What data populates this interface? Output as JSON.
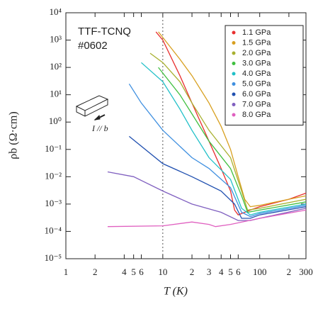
{
  "chart_data": {
    "type": "line",
    "x_label": "T (K)",
    "y_label": "ρb (Ω·cm)",
    "annotations": [
      "TTF-TCNQ",
      "#0602",
      "I // b"
    ],
    "log_x": true,
    "log_y": true,
    "legend": "upper right",
    "reference_x": 10,
    "xlim": [
      1,
      300
    ],
    "ylim": [
      1e-05,
      10000
    ],
    "xticks": [
      1,
      {
        "value": 2,
        "label": "2"
      },
      {
        "value": 4,
        "label": "4"
      },
      {
        "value": 5,
        "label": "5"
      },
      {
        "value": 6,
        "label": "6"
      },
      10,
      {
        "value": 20,
        "label": "2"
      },
      {
        "value": 30,
        "label": "3"
      },
      {
        "value": 40,
        "label": "4"
      },
      {
        "value": 50,
        "label": "5"
      },
      {
        "value": 60,
        "label": "6"
      },
      100,
      {
        "value": 200,
        "label": "2"
      },
      300
    ],
    "yticks": [
      {
        "value": 1e-05,
        "label": "10⁻⁵"
      },
      {
        "value": 0.0001,
        "label": "10⁻⁴"
      },
      {
        "value": 0.001,
        "label": "10⁻³"
      },
      {
        "value": 0.01,
        "label": "10⁻²"
      },
      {
        "value": 0.1,
        "label": "10⁻¹"
      },
      {
        "value": 1,
        "label": "10⁰"
      },
      {
        "value": 10,
        "label": "10¹"
      },
      {
        "value": 100,
        "label": "10²"
      },
      {
        "value": 1000,
        "label": "10³"
      },
      {
        "value": 10000,
        "label": "10⁴"
      }
    ],
    "series": [
      {
        "name": "1.1 GPa",
        "color": "#e83030",
        "x": [
          8.5,
          10,
          15,
          20,
          30,
          40,
          50,
          55,
          60,
          80,
          100,
          200,
          300
        ],
        "values": [
          2000,
          1000,
          50,
          5,
          0.2,
          0.02,
          0.003,
          0.0006,
          0.0004,
          0.0006,
          0.0008,
          0.0015,
          0.0025
        ]
      },
      {
        "name": "1.5 GPa",
        "color": "#d8a020",
        "x": [
          9,
          15,
          20,
          30,
          40,
          50,
          60,
          70,
          80,
          100,
          200,
          300
        ],
        "values": [
          2000,
          200,
          50,
          5,
          0.7,
          0.1,
          0.01,
          0.0015,
          0.0008,
          0.0009,
          0.0015,
          0.002
        ]
      },
      {
        "name": "2.0 GPa",
        "color": "#a8b030",
        "x": [
          7.4,
          10,
          15,
          20,
          30,
          50,
          65,
          75,
          100,
          300
        ],
        "values": [
          330,
          150,
          30,
          5,
          0.5,
          0.05,
          0.003,
          0.0006,
          0.0007,
          0.0015
        ]
      },
      {
        "name": "3.0 GPa",
        "color": "#40c040",
        "x": [
          9,
          15,
          20,
          30,
          50,
          65,
          75,
          100,
          300
        ],
        "values": [
          100,
          10,
          2,
          0.2,
          0.02,
          0.002,
          0.0005,
          0.0006,
          0.0012
        ]
      },
      {
        "name": "4.0 GPa",
        "color": "#20c0c8",
        "x": [
          6,
          10,
          15,
          20,
          30,
          50,
          65,
          80,
          100,
          300
        ],
        "values": [
          150,
          30,
          3,
          0.5,
          0.05,
          0.008,
          0.0007,
          0.0004,
          0.0005,
          0.001
        ]
      },
      {
        "name": "5.0 GPa",
        "color": "#4090e0",
        "x": [
          4.5,
          6,
          10,
          20,
          30,
          50,
          65,
          80,
          100,
          300
        ],
        "values": [
          25,
          5,
          0.5,
          0.05,
          0.02,
          0.004,
          0.0005,
          0.00035,
          0.00045,
          0.0009
        ]
      },
      {
        "name": "6.0 GPa",
        "color": "#2050b0",
        "x": [
          4.5,
          10,
          20,
          40,
          55,
          65,
          80,
          100,
          300
        ],
        "values": [
          0.3,
          0.03,
          0.01,
          0.003,
          0.001,
          0.0003,
          0.0003,
          0.0004,
          0.0008
        ]
      },
      {
        "name": "7.0 GPa",
        "color": "#8060c0",
        "x": [
          2.7,
          5,
          10,
          20,
          40,
          60,
          80,
          100,
          300
        ],
        "values": [
          0.015,
          0.01,
          0.003,
          0.001,
          0.0005,
          0.00025,
          0.00025,
          0.0003,
          0.0007
        ]
      },
      {
        "name": "8.0 GPa",
        "color": "#e060c0",
        "x": [
          2.7,
          10,
          20,
          30,
          35,
          50,
          100,
          300
        ],
        "values": [
          0.00015,
          0.00016,
          0.00022,
          0.00018,
          0.00015,
          0.00018,
          0.0003,
          0.0006
        ]
      }
    ]
  }
}
